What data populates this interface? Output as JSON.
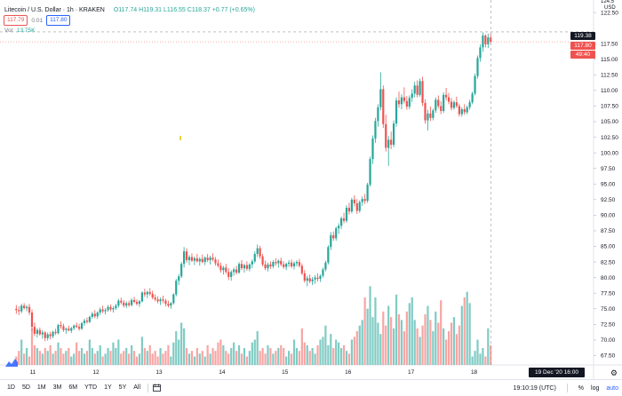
{
  "legend": {
    "symbol": "Litecoin / U.S. Dollar · 1h · KRAKEN",
    "open": "O117.74",
    "high": "H119.31",
    "low": "L116.55",
    "close": "C118.37",
    "change": "+0.77 (+0.65%)"
  },
  "quote": {
    "bid": "117.79",
    "spread": "0.01",
    "ask": "117.80"
  },
  "volume": {
    "label": "Vol",
    "value": "13.75K"
  },
  "price_axis": {
    "currency": "USD",
    "ticks": [
      "122.50",
      "117.50",
      "115.00",
      "112.50",
      "110.00",
      "107.50",
      "105.00",
      "102.50",
      "100.00",
      "97.50",
      "95.00",
      "92.50",
      "90.00",
      "87.50",
      "85.00",
      "82.50",
      "80.00",
      "77.50",
      "75.00",
      "72.50",
      "70.00",
      "67.50"
    ],
    "top_partial": "124.5",
    "crosshair_tag": "119.38",
    "last_price_tag": "117.80",
    "countdown_tag": "49:40"
  },
  "time_axis": {
    "labels": [
      "11",
      "12",
      "13",
      "14",
      "15",
      "16",
      "17",
      "18",
      "19"
    ],
    "crosshair_date": "19 Dec '20  16:00"
  },
  "bottom_bar": {
    "ranges": [
      "1D",
      "5D",
      "1M",
      "3M",
      "6M",
      "YTD",
      "1Y",
      "5Y",
      "All"
    ],
    "clock": "19:10:19 (UTC)",
    "percent": "%",
    "log": "log",
    "auto": "auto"
  },
  "colors": {
    "up": "#26a69a",
    "down": "#ef5350",
    "up_vol": "#80cbc4",
    "down_vol": "#f8a5a3",
    "accent": "#2962ff"
  },
  "icons": [
    "tradingview-logo-icon",
    "calendar-range-icon",
    "gear-icon"
  ],
  "chart_data": {
    "type": "candlestick",
    "y_unit": "USD",
    "ylim": [
      66.0,
      124.5
    ],
    "x_day_labels": [
      "11",
      "12",
      "13",
      "14",
      "15",
      "16",
      "17",
      "18",
      "19"
    ],
    "hours_per_day": 24,
    "start_hour_offset": -6,
    "candles": [
      [
        75.0,
        75.6,
        74.2,
        74.8
      ],
      [
        74.8,
        75.4,
        74.0,
        74.6
      ],
      [
        74.6,
        75.8,
        74.3,
        75.5
      ],
      [
        75.5,
        75.9,
        74.9,
        75.1
      ],
      [
        75.1,
        75.6,
        74.6,
        75.3
      ],
      [
        75.3,
        75.8,
        74.0,
        74.4
      ],
      [
        74.4,
        74.9,
        71.5,
        72.1
      ],
      [
        72.1,
        72.8,
        70.6,
        71.0
      ],
      [
        71.0,
        71.9,
        70.4,
        71.6
      ],
      [
        71.6,
        72.0,
        70.7,
        70.9
      ],
      [
        70.9,
        71.6,
        70.2,
        71.2
      ],
      [
        71.2,
        71.4,
        69.8,
        70.3
      ],
      [
        70.3,
        71.2,
        69.9,
        70.9
      ],
      [
        70.9,
        71.3,
        70.1,
        70.6
      ],
      [
        70.6,
        71.5,
        70.3,
        71.3
      ],
      [
        71.3,
        71.8,
        70.8,
        71.1
      ],
      [
        71.1,
        72.6,
        70.9,
        72.4
      ],
      [
        72.4,
        73.0,
        71.8,
        72.2
      ],
      [
        72.2,
        72.6,
        71.3,
        71.6
      ],
      [
        71.6,
        72.0,
        71.0,
        71.8
      ],
      [
        71.8,
        72.3,
        71.4,
        71.5
      ],
      [
        71.5,
        72.1,
        71.1,
        71.9
      ],
      [
        71.9,
        72.5,
        71.6,
        72.3
      ],
      [
        72.3,
        72.8,
        71.9,
        72.1
      ],
      [
        72.1,
        72.6,
        71.5,
        71.8
      ],
      [
        71.8,
        72.9,
        71.6,
        72.7
      ],
      [
        72.7,
        73.4,
        72.3,
        73.1
      ],
      [
        73.1,
        73.6,
        72.6,
        72.9
      ],
      [
        72.9,
        73.9,
        72.7,
        73.7
      ],
      [
        73.7,
        74.5,
        73.4,
        74.2
      ],
      [
        74.2,
        74.8,
        73.5,
        73.8
      ],
      [
        73.8,
        74.6,
        73.4,
        74.4
      ],
      [
        74.4,
        75.2,
        74.0,
        74.9
      ],
      [
        74.9,
        75.5,
        74.3,
        74.6
      ],
      [
        74.6,
        75.1,
        74.1,
        74.8
      ],
      [
        74.8,
        75.6,
        74.5,
        75.3
      ],
      [
        75.3,
        75.7,
        74.6,
        74.9
      ],
      [
        74.9,
        75.4,
        74.4,
        75.1
      ],
      [
        75.1,
        75.8,
        74.8,
        75.5
      ],
      [
        75.5,
        76.6,
        75.2,
        76.3
      ],
      [
        76.3,
        76.8,
        75.7,
        76.0
      ],
      [
        76.0,
        76.4,
        75.2,
        75.5
      ],
      [
        75.5,
        76.2,
        75.1,
        75.9
      ],
      [
        75.9,
        76.3,
        75.3,
        75.6
      ],
      [
        75.6,
        76.7,
        75.4,
        76.4
      ],
      [
        76.4,
        76.9,
        75.9,
        76.1
      ],
      [
        76.1,
        76.5,
        75.5,
        75.8
      ],
      [
        75.8,
        76.4,
        75.3,
        76.2
      ],
      [
        76.2,
        77.8,
        76.0,
        77.6
      ],
      [
        77.6,
        78.2,
        76.9,
        77.3
      ],
      [
        77.3,
        77.9,
        76.7,
        77.7
      ],
      [
        77.7,
        78.3,
        77.1,
        77.4
      ],
      [
        77.4,
        77.9,
        76.5,
        76.8
      ],
      [
        76.8,
        77.3,
        76.2,
        76.5
      ],
      [
        76.5,
        77.0,
        75.9,
        76.2
      ],
      [
        76.2,
        76.8,
        75.6,
        76.5
      ],
      [
        76.5,
        77.1,
        75.9,
        76.3
      ],
      [
        76.3,
        76.6,
        75.4,
        75.8
      ],
      [
        75.8,
        76.3,
        75.2,
        75.5
      ],
      [
        75.5,
        76.1,
        75.0,
        75.9
      ],
      [
        75.9,
        77.5,
        75.7,
        77.3
      ],
      [
        77.3,
        79.8,
        77.0,
        79.5
      ],
      [
        79.5,
        80.6,
        78.8,
        80.2
      ],
      [
        80.2,
        82.5,
        79.9,
        82.2
      ],
      [
        82.2,
        84.9,
        81.6,
        84.2
      ],
      [
        84.2,
        84.7,
        82.4,
        82.8
      ],
      [
        82.8,
        83.6,
        82.0,
        83.3
      ],
      [
        83.3,
        83.9,
        82.5,
        82.7
      ],
      [
        82.7,
        83.4,
        82.0,
        83.1
      ],
      [
        83.1,
        83.8,
        82.4,
        82.6
      ],
      [
        82.6,
        83.3,
        81.9,
        83.0
      ],
      [
        83.0,
        83.7,
        82.3,
        82.5
      ],
      [
        82.5,
        83.4,
        82.0,
        83.2
      ],
      [
        83.2,
        83.8,
        82.5,
        82.8
      ],
      [
        82.8,
        83.5,
        82.1,
        83.2
      ],
      [
        83.2,
        83.9,
        82.6,
        82.9
      ],
      [
        82.9,
        83.3,
        81.9,
        82.3
      ],
      [
        82.3,
        82.9,
        81.6,
        81.9
      ],
      [
        81.9,
        82.4,
        80.8,
        81.2
      ],
      [
        81.2,
        81.9,
        80.5,
        81.6
      ],
      [
        81.6,
        82.2,
        80.6,
        80.9
      ],
      [
        80.9,
        81.5,
        79.6,
        80.1
      ],
      [
        80.1,
        81.2,
        79.5,
        80.9
      ],
      [
        80.9,
        81.6,
        80.3,
        81.3
      ],
      [
        81.3,
        81.9,
        80.5,
        80.8
      ],
      [
        80.8,
        82.5,
        80.6,
        82.2
      ],
      [
        82.2,
        82.8,
        81.2,
        81.5
      ],
      [
        81.5,
        82.2,
        80.8,
        82.0
      ],
      [
        82.0,
        82.6,
        81.1,
        81.4
      ],
      [
        81.4,
        82.3,
        81.0,
        82.1
      ],
      [
        82.1,
        82.9,
        81.5,
        82.6
      ],
      [
        82.6,
        84.2,
        82.3,
        83.8
      ],
      [
        83.8,
        85.3,
        83.3,
        84.7
      ],
      [
        84.7,
        85.1,
        83.0,
        83.4
      ],
      [
        83.4,
        83.8,
        81.8,
        82.1
      ],
      [
        82.1,
        82.7,
        81.2,
        81.5
      ],
      [
        81.5,
        82.4,
        81.0,
        82.1
      ],
      [
        82.1,
        82.6,
        81.4,
        81.8
      ],
      [
        81.8,
        82.8,
        81.5,
        82.5
      ],
      [
        82.5,
        83.1,
        81.9,
        82.3
      ],
      [
        82.3,
        82.9,
        81.6,
        82.7
      ],
      [
        82.7,
        83.2,
        81.8,
        82.1
      ],
      [
        82.1,
        82.6,
        81.4,
        81.7
      ],
      [
        81.7,
        82.4,
        81.2,
        82.2
      ],
      [
        82.2,
        82.8,
        81.7,
        82.4
      ],
      [
        82.4,
        82.9,
        81.5,
        81.8
      ],
      [
        81.8,
        82.6,
        81.3,
        82.3
      ],
      [
        82.3,
        82.8,
        81.8,
        82.5
      ],
      [
        82.5,
        83.0,
        81.6,
        81.9
      ],
      [
        81.9,
        82.3,
        80.4,
        80.7
      ],
      [
        80.7,
        81.2,
        79.2,
        79.5
      ],
      [
        79.5,
        80.3,
        78.6,
        79.9
      ],
      [
        79.9,
        80.5,
        79.1,
        79.4
      ],
      [
        79.4,
        80.1,
        78.8,
        79.7
      ],
      [
        79.7,
        80.4,
        79.0,
        80.0
      ],
      [
        80.0,
        80.7,
        79.4,
        79.8
      ],
      [
        79.8,
        80.5,
        79.3,
        80.3
      ],
      [
        80.3,
        81.6,
        80.0,
        81.3
      ],
      [
        81.3,
        82.7,
        81.0,
        82.4
      ],
      [
        82.4,
        85.2,
        82.1,
        84.9
      ],
      [
        84.9,
        87.3,
        84.4,
        86.8
      ],
      [
        86.8,
        87.4,
        85.9,
        86.3
      ],
      [
        86.3,
        88.2,
        85.9,
        87.9
      ],
      [
        87.9,
        88.7,
        87.0,
        88.3
      ],
      [
        88.3,
        89.8,
        87.8,
        89.5
      ],
      [
        89.5,
        90.4,
        88.7,
        89.1
      ],
      [
        89.1,
        91.6,
        88.8,
        91.2
      ],
      [
        91.2,
        92.0,
        90.1,
        90.6
      ],
      [
        90.6,
        92.8,
        90.3,
        92.5
      ],
      [
        92.5,
        93.2,
        91.4,
        91.9
      ],
      [
        91.9,
        92.6,
        90.2,
        90.7
      ],
      [
        90.7,
        92.4,
        90.4,
        92.1
      ],
      [
        92.1,
        93.0,
        91.5,
        92.6
      ],
      [
        92.6,
        93.4,
        91.8,
        92.3
      ],
      [
        92.3,
        95.2,
        92.0,
        94.9
      ],
      [
        94.9,
        99.4,
        94.6,
        99.0
      ],
      [
        99.0,
        102.8,
        98.2,
        102.3
      ],
      [
        102.3,
        105.6,
        101.6,
        105.1
      ],
      [
        105.1,
        107.8,
        104.2,
        107.3
      ],
      [
        107.3,
        112.9,
        106.8,
        110.2
      ],
      [
        110.2,
        110.8,
        104.0,
        104.6
      ],
      [
        104.6,
        106.1,
        100.2,
        100.8
      ],
      [
        100.8,
        102.7,
        97.9,
        102.1
      ],
      [
        102.1,
        103.4,
        100.6,
        101.3
      ],
      [
        101.3,
        105.2,
        100.9,
        104.7
      ],
      [
        104.7,
        108.9,
        104.2,
        108.4
      ],
      [
        108.4,
        109.8,
        107.2,
        107.8
      ],
      [
        107.8,
        109.4,
        107.0,
        108.9
      ],
      [
        108.9,
        110.5,
        107.9,
        108.3
      ],
      [
        108.3,
        109.1,
        106.9,
        107.4
      ],
      [
        107.4,
        109.2,
        107.0,
        108.8
      ],
      [
        108.8,
        110.2,
        108.1,
        109.5
      ],
      [
        109.5,
        111.4,
        108.9,
        110.8
      ],
      [
        110.8,
        111.6,
        108.9,
        109.3
      ],
      [
        109.3,
        111.9,
        109.0,
        111.5
      ],
      [
        111.5,
        112.2,
        107.5,
        108.0
      ],
      [
        108.0,
        108.6,
        104.7,
        105.2
      ],
      [
        105.2,
        106.9,
        103.6,
        106.3
      ],
      [
        106.3,
        107.4,
        105.1,
        105.6
      ],
      [
        105.6,
        107.1,
        105.2,
        106.8
      ],
      [
        106.8,
        108.9,
        106.4,
        108.5
      ],
      [
        108.5,
        109.2,
        107.1,
        107.5
      ],
      [
        107.5,
        108.3,
        106.2,
        106.7
      ],
      [
        106.7,
        109.7,
        106.4,
        109.3
      ],
      [
        109.3,
        110.4,
        108.4,
        108.9
      ],
      [
        108.9,
        109.6,
        107.8,
        108.2
      ],
      [
        108.2,
        108.8,
        106.8,
        107.2
      ],
      [
        107.2,
        108.4,
        106.9,
        108.1
      ],
      [
        108.1,
        109.0,
        107.2,
        107.5
      ],
      [
        107.5,
        107.9,
        105.8,
        106.2
      ],
      [
        106.2,
        107.3,
        105.8,
        107.0
      ],
      [
        107.0,
        107.8,
        106.1,
        106.5
      ],
      [
        106.5,
        107.6,
        106.2,
        107.3
      ],
      [
        107.3,
        108.5,
        106.9,
        108.1
      ],
      [
        108.1,
        109.8,
        107.8,
        109.5
      ],
      [
        109.5,
        112.7,
        109.2,
        112.3
      ],
      [
        112.3,
        115.6,
        111.9,
        115.2
      ],
      [
        115.2,
        117.4,
        114.6,
        116.9
      ],
      [
        116.9,
        119.3,
        116.2,
        118.8
      ],
      [
        118.8,
        119.0,
        116.9,
        117.4
      ],
      [
        117.4,
        119.1,
        116.8,
        118.5
      ],
      [
        118.5,
        119.2,
        117.4,
        117.8
      ]
    ],
    "volume_bars_relative_ymax_pct": 100
  }
}
